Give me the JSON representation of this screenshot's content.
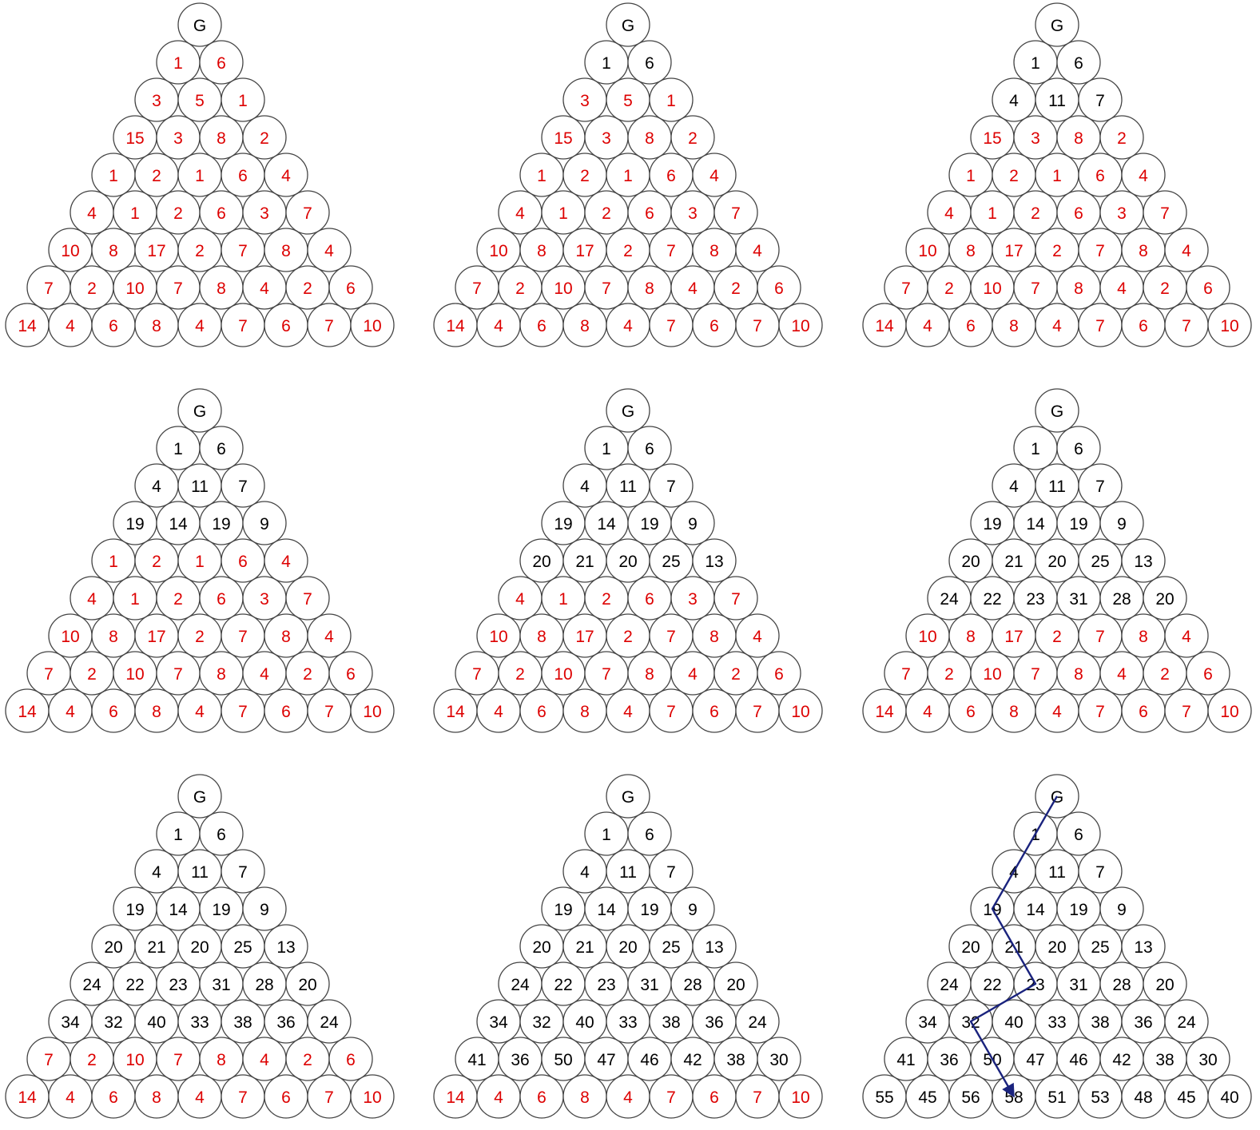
{
  "colors": {
    "computed": "#000000",
    "original": "#dd0000",
    "circle_stroke": "#444444",
    "path": "#1a237e"
  },
  "start_label": "G",
  "base_rows": [
    [
      "1",
      "6"
    ],
    [
      "3",
      "5",
      "1"
    ],
    [
      "15",
      "3",
      "8",
      "2"
    ],
    [
      "1",
      "2",
      "1",
      "6",
      "4"
    ],
    [
      "4",
      "1",
      "2",
      "6",
      "3",
      "7"
    ],
    [
      "10",
      "8",
      "17",
      "2",
      "7",
      "8",
      "4"
    ],
    [
      "7",
      "2",
      "10",
      "7",
      "8",
      "4",
      "2",
      "6"
    ],
    [
      "14",
      "4",
      "6",
      "8",
      "4",
      "7",
      "6",
      "7",
      "10"
    ]
  ],
  "computed_rows": [
    [
      "1",
      "6"
    ],
    [
      "4",
      "11",
      "7"
    ],
    [
      "19",
      "14",
      "19",
      "9"
    ],
    [
      "20",
      "21",
      "20",
      "25",
      "13"
    ],
    [
      "24",
      "22",
      "23",
      "31",
      "28",
      "20"
    ],
    [
      "34",
      "32",
      "40",
      "33",
      "38",
      "36",
      "24"
    ],
    [
      "41",
      "36",
      "50",
      "47",
      "46",
      "42",
      "38",
      "30"
    ],
    [
      "55",
      "45",
      "56",
      "58",
      "51",
      "53",
      "48",
      "45",
      "40"
    ]
  ],
  "panels": [
    {
      "id": 1,
      "rows_computed": 0
    },
    {
      "id": 2,
      "rows_computed": 1
    },
    {
      "id": 3,
      "rows_computed": 2
    },
    {
      "id": 4,
      "rows_computed": 3
    },
    {
      "id": 5,
      "rows_computed": 4
    },
    {
      "id": 6,
      "rows_computed": 5
    },
    {
      "id": 7,
      "rows_computed": 6
    },
    {
      "id": 8,
      "rows_computed": 7
    },
    {
      "id": 9,
      "rows_computed": 8,
      "path_indices": [
        0,
        0,
        0,
        0,
        1,
        2,
        1,
        2,
        3
      ]
    }
  ]
}
